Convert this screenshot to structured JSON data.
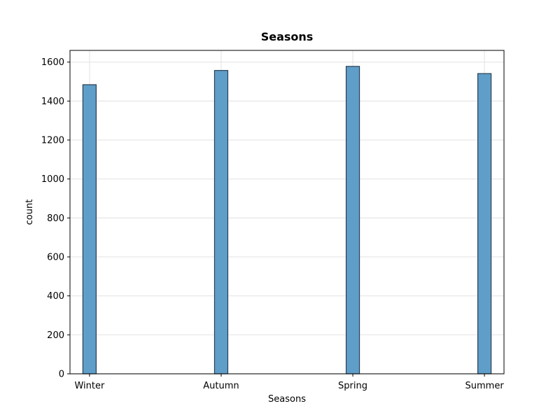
{
  "chart_data": {
    "type": "bar",
    "title": "Seasons",
    "xlabel": "Seasons",
    "ylabel": "count",
    "categories": [
      "Winter",
      "Autumn",
      "Spring",
      "Summer"
    ],
    "values": [
      1484,
      1557,
      1578,
      1541
    ],
    "ylim": [
      0,
      1660
    ],
    "yticks": [
      0,
      200,
      400,
      600,
      800,
      1000,
      1200,
      1400,
      1600
    ],
    "grid": true,
    "bar_color": "#5f9ec9",
    "bar_edge_color": "#2a3f52",
    "grid_color": "#e6e6e6"
  }
}
